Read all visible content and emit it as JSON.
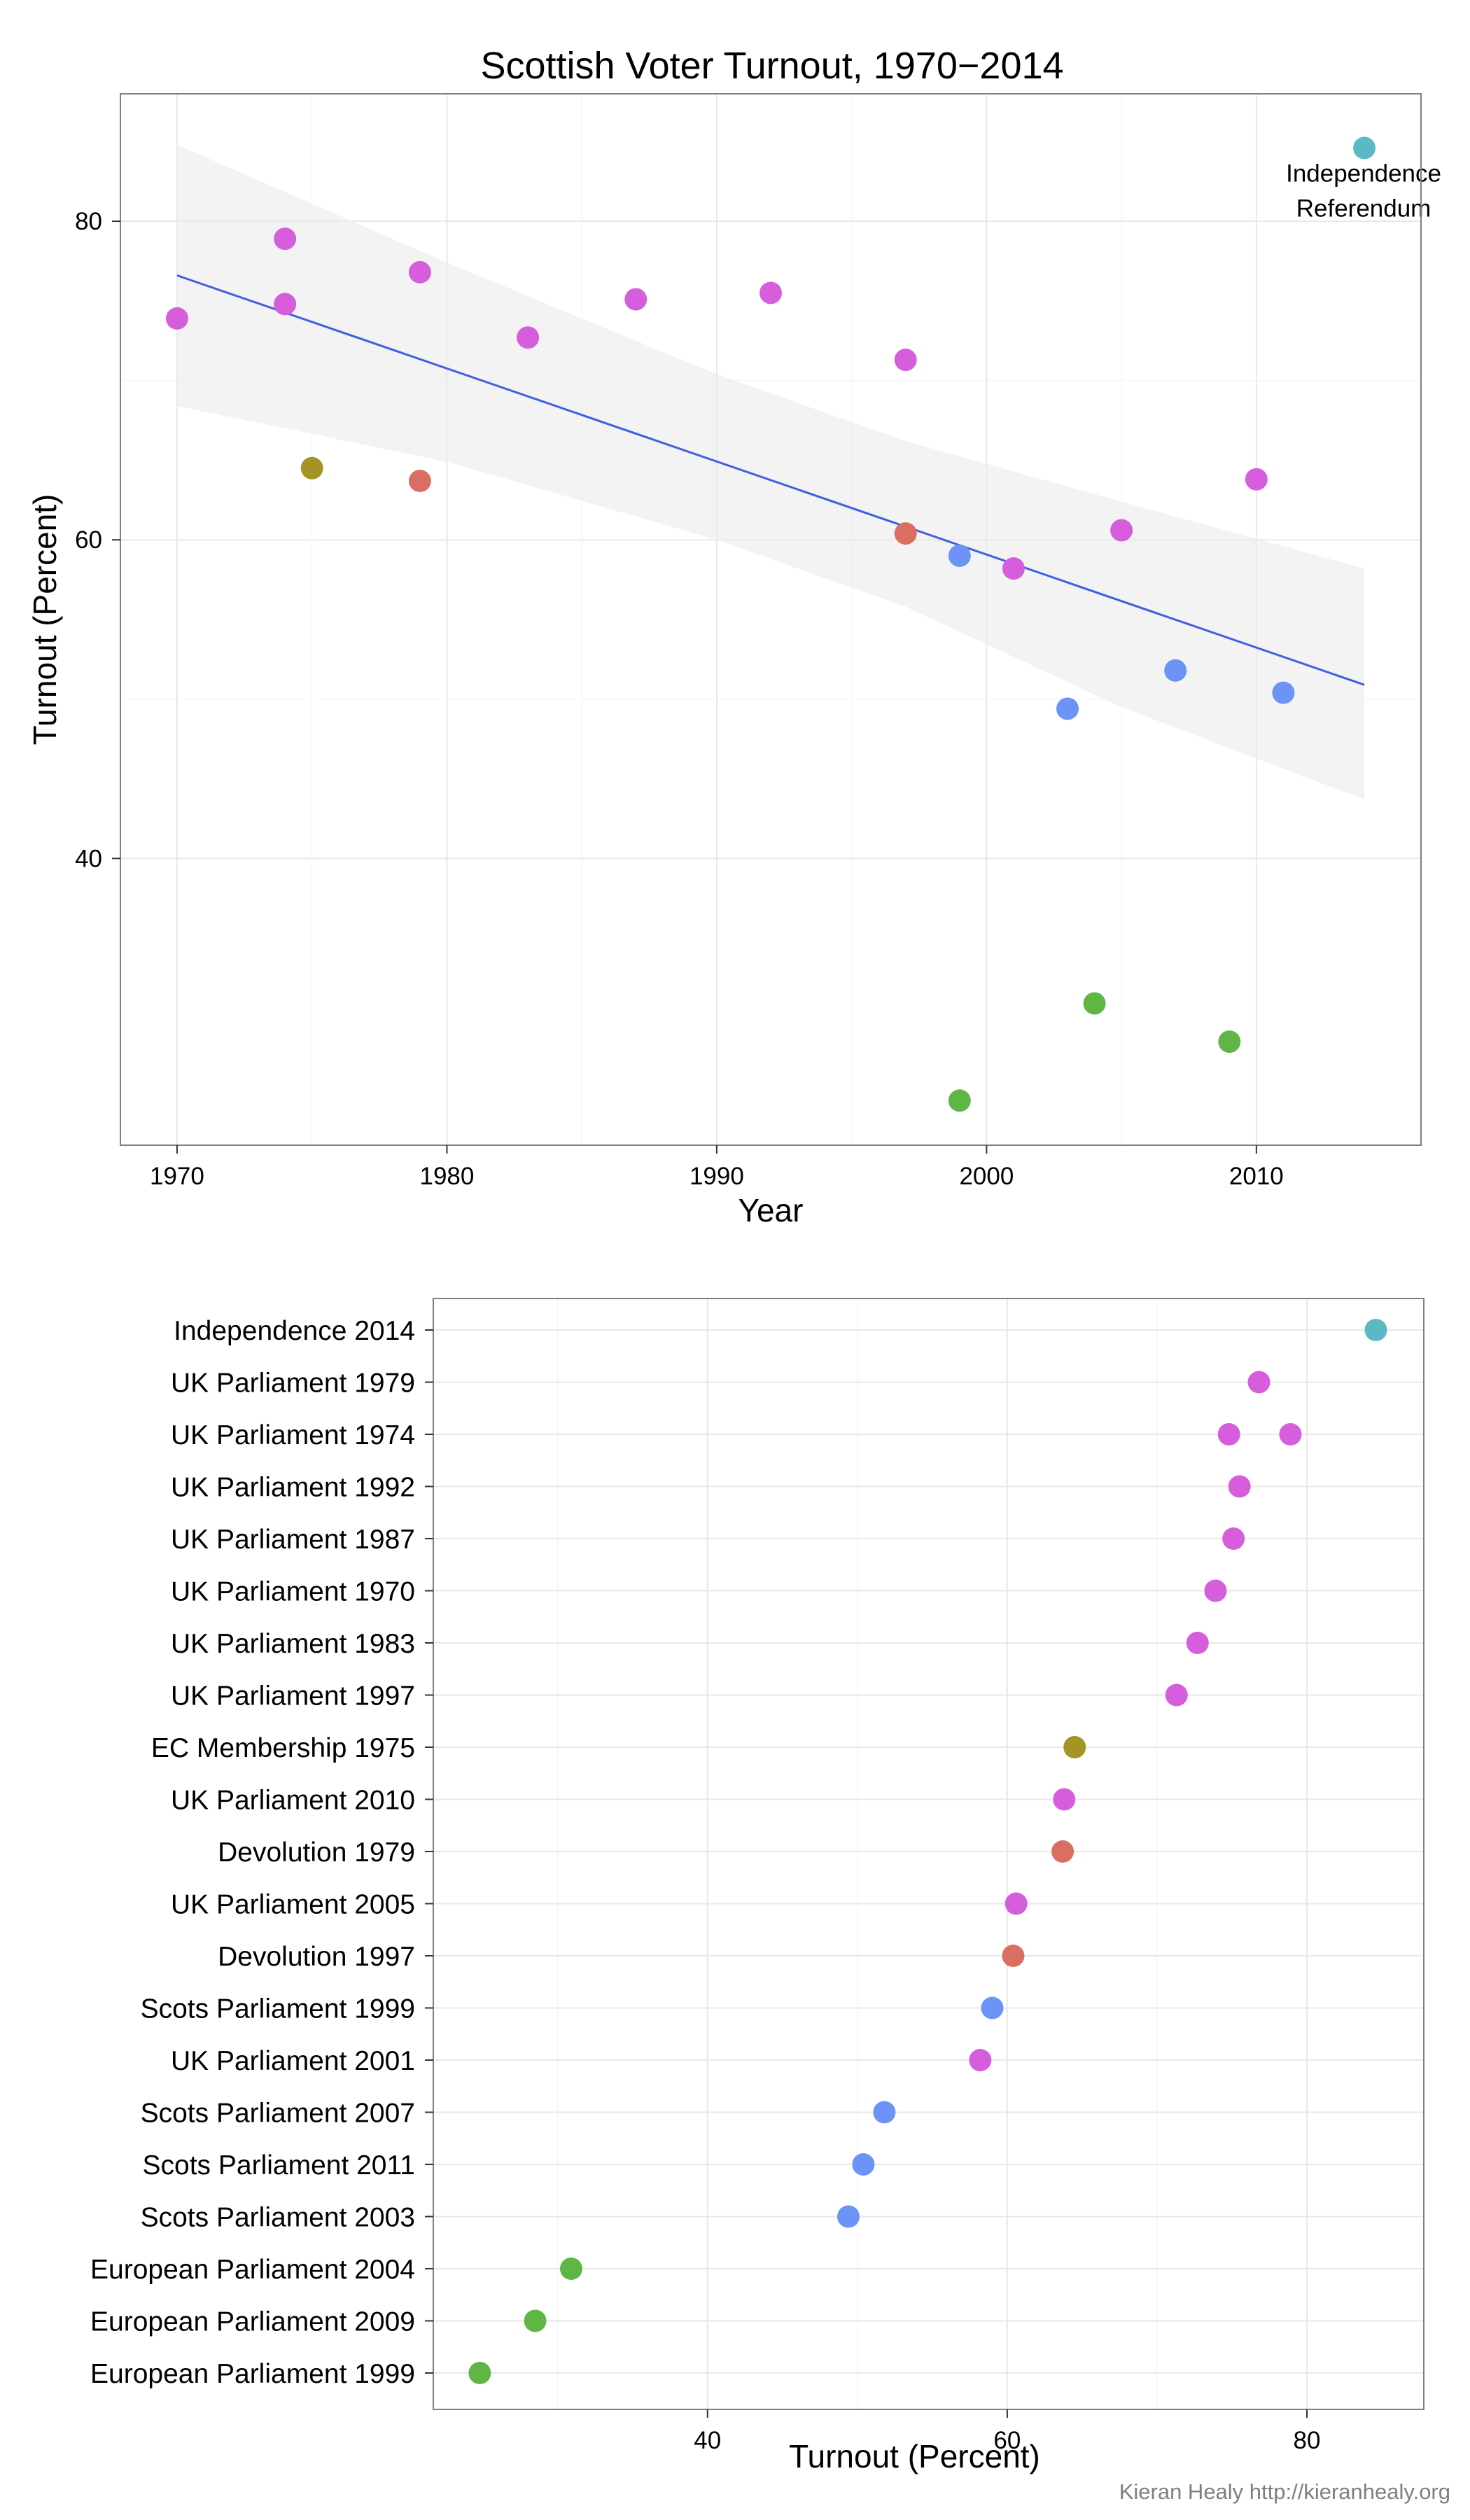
{
  "credit": "Kieran Healy http://kieranhealy.org",
  "colors": {
    "Independence Referendum": "#5ab9c3",
    "UK Parliament": "#d65ddb",
    "EC Membership": "#a39424",
    "Devolution": "#db6e62",
    "Scots Parliament": "#6d93f6",
    "European Parliament": "#60b645",
    "trend": "#3f5fe0",
    "band": "#ebebeb"
  },
  "chart_data": [
    {
      "type": "scatter",
      "title": "Scottish Voter Turnout, 1970−2014",
      "xlabel": "Year",
      "ylabel": "Turnout (Percent)",
      "xlim": [
        1967.9,
        2016.1
      ],
      "ylim": [
        22.0,
        88.0
      ],
      "xticks": [
        1970,
        1980,
        1990,
        2000,
        2010
      ],
      "yticks": [
        40,
        60,
        80
      ],
      "grid": true,
      "legend": "none",
      "annotation": {
        "text_lines": [
          "Independence",
          "Referendum"
        ],
        "x": 2014,
        "y": 84.6
      },
      "trend": {
        "x": [
          1970,
          2014
        ],
        "y": [
          76.6,
          50.9
        ],
        "band_x": [
          1970,
          1980,
          1990,
          1997,
          2005,
          2014
        ],
        "band_upper": [
          84.8,
          77.4,
          70.4,
          66.2,
          62.4,
          58.2
        ],
        "band_lower": [
          68.4,
          64.9,
          60.0,
          55.8,
          49.5,
          43.7
        ]
      },
      "points": [
        {
          "x": 1970,
          "y": 73.9,
          "kind": "UK Parliament"
        },
        {
          "x": 1974,
          "y": 78.9,
          "kind": "UK Parliament"
        },
        {
          "x": 1974,
          "y": 74.8,
          "kind": "UK Parliament"
        },
        {
          "x": 1975,
          "y": 64.5,
          "kind": "EC Membership"
        },
        {
          "x": 1979,
          "y": 76.8,
          "kind": "UK Parliament"
        },
        {
          "x": 1979,
          "y": 63.7,
          "kind": "Devolution"
        },
        {
          "x": 1983,
          "y": 72.7,
          "kind": "UK Parliament"
        },
        {
          "x": 1987,
          "y": 75.1,
          "kind": "UK Parliament"
        },
        {
          "x": 1992,
          "y": 75.5,
          "kind": "UK Parliament"
        },
        {
          "x": 1997,
          "y": 71.3,
          "kind": "UK Parliament"
        },
        {
          "x": 1997,
          "y": 60.4,
          "kind": "Devolution"
        },
        {
          "x": 1999,
          "y": 59.0,
          "kind": "Scots Parliament"
        },
        {
          "x": 1999,
          "y": 24.8,
          "kind": "European Parliament"
        },
        {
          "x": 2001,
          "y": 58.2,
          "kind": "UK Parliament"
        },
        {
          "x": 2003,
          "y": 49.4,
          "kind": "Scots Parliament"
        },
        {
          "x": 2004,
          "y": 30.9,
          "kind": "European Parliament"
        },
        {
          "x": 2005,
          "y": 60.6,
          "kind": "UK Parliament"
        },
        {
          "x": 2007,
          "y": 51.8,
          "kind": "Scots Parliament"
        },
        {
          "x": 2009,
          "y": 28.5,
          "kind": "European Parliament"
        },
        {
          "x": 2010,
          "y": 63.8,
          "kind": "UK Parliament"
        },
        {
          "x": 2011,
          "y": 50.4,
          "kind": "Scots Parliament"
        },
        {
          "x": 2014,
          "y": 84.6,
          "kind": "Independence Referendum"
        }
      ]
    },
    {
      "type": "scatter",
      "title": "",
      "xlabel": "Turnout (Percent)",
      "ylabel": "",
      "xlim": [
        21.7,
        87.8
      ],
      "xticks": [
        40,
        60,
        80
      ],
      "grid": true,
      "legend": "none",
      "categories": [
        "Independence 2014",
        "UK Parliament 1979",
        "UK Parliament 1974",
        "UK Parliament 1992",
        "UK Parliament 1987",
        "UK Parliament 1970",
        "UK Parliament 1983",
        "UK Parliament 1997",
        "EC Membership 1975",
        "UK Parliament 2010",
        "Devolution 1979",
        "UK Parliament 2005",
        "Devolution 1997",
        "Scots Parliament 1999",
        "UK Parliament 2001",
        "Scots Parliament 2007",
        "Scots Parliament 2011",
        "Scots Parliament 2003",
        "European Parliament 2004",
        "European Parliament 2009",
        "European Parliament 1999"
      ],
      "points": [
        {
          "category": "Independence 2014",
          "x": 84.6,
          "kind": "Independence Referendum"
        },
        {
          "category": "UK Parliament 1979",
          "x": 76.8,
          "kind": "UK Parliament"
        },
        {
          "category": "UK Parliament 1974",
          "x": 74.8,
          "kind": "UK Parliament"
        },
        {
          "category": "UK Parliament 1974",
          "x": 78.9,
          "kind": "UK Parliament"
        },
        {
          "category": "UK Parliament 1992",
          "x": 75.5,
          "kind": "UK Parliament"
        },
        {
          "category": "UK Parliament 1987",
          "x": 75.1,
          "kind": "UK Parliament"
        },
        {
          "category": "UK Parliament 1970",
          "x": 73.9,
          "kind": "UK Parliament"
        },
        {
          "category": "UK Parliament 1983",
          "x": 72.7,
          "kind": "UK Parliament"
        },
        {
          "category": "UK Parliament 1997",
          "x": 71.3,
          "kind": "UK Parliament"
        },
        {
          "category": "EC Membership 1975",
          "x": 64.5,
          "kind": "EC Membership"
        },
        {
          "category": "UK Parliament 2010",
          "x": 63.8,
          "kind": "UK Parliament"
        },
        {
          "category": "Devolution 1979",
          "x": 63.7,
          "kind": "Devolution"
        },
        {
          "category": "UK Parliament 2005",
          "x": 60.6,
          "kind": "UK Parliament"
        },
        {
          "category": "Devolution 1997",
          "x": 60.4,
          "kind": "Devolution"
        },
        {
          "category": "Scots Parliament 1999",
          "x": 59.0,
          "kind": "Scots Parliament"
        },
        {
          "category": "UK Parliament 2001",
          "x": 58.2,
          "kind": "UK Parliament"
        },
        {
          "category": "Scots Parliament 2007",
          "x": 51.8,
          "kind": "Scots Parliament"
        },
        {
          "category": "Scots Parliament 2011",
          "x": 50.4,
          "kind": "Scots Parliament"
        },
        {
          "category": "Scots Parliament 2003",
          "x": 49.4,
          "kind": "Scots Parliament"
        },
        {
          "category": "European Parliament 2004",
          "x": 30.9,
          "kind": "European Parliament"
        },
        {
          "category": "European Parliament 2009",
          "x": 28.5,
          "kind": "European Parliament"
        },
        {
          "category": "European Parliament 1999",
          "x": 24.8,
          "kind": "European Parliament"
        }
      ]
    }
  ]
}
